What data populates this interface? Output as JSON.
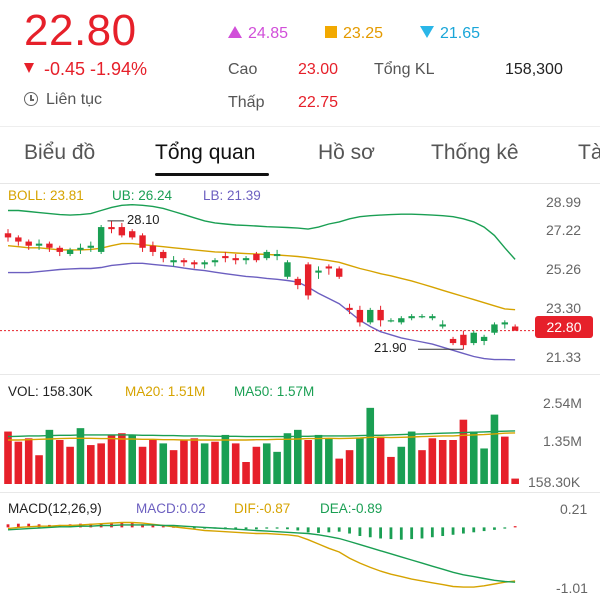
{
  "quote": {
    "price": "22.80",
    "change": "-0.45 -1.94%",
    "status": "Liên tục",
    "ceiling": "24.85",
    "reference": "23.25",
    "floor": "21.65",
    "high_label": "Cao",
    "high_value": "23.00",
    "low_label": "Thấp",
    "low_value": "22.75",
    "volume_label": "Tổng KL",
    "volume_value": "158,300",
    "colors": {
      "down": "#e6202a",
      "up": "#1a9f53",
      "ceiling": "#d14fd9",
      "reference": "#f2a900",
      "floor": "#2ab6e8"
    }
  },
  "tabs": [
    {
      "label": "Biểu đồ",
      "active": false
    },
    {
      "label": "Tổng quan",
      "active": true
    },
    {
      "label": "Hồ sơ",
      "active": false
    },
    {
      "label": "Thống kê",
      "active": false
    },
    {
      "label": "Tà",
      "active": false
    }
  ],
  "chart_data": [
    {
      "type": "candlestick",
      "legend": {
        "boll": "BOLL: 23.81",
        "ub": "UB: 26.24",
        "lb": "LB: 21.39"
      },
      "y_ticks": [
        "28.99",
        "27.22",
        "25.26",
        "23.30",
        "21.33"
      ],
      "ylim": [
        20.9,
        29.3
      ],
      "last_price": "22.80",
      "annotations": {
        "max": "28.10",
        "min": "21.90"
      },
      "candles": [
        [
          27.5,
          27.7,
          27.1,
          27.3
        ],
        [
          27.3,
          27.4,
          26.9,
          27.1
        ],
        [
          27.1,
          27.2,
          26.7,
          26.9
        ],
        [
          26.9,
          27.2,
          26.7,
          27.0
        ],
        [
          27.0,
          27.1,
          26.6,
          26.8
        ],
        [
          26.8,
          26.9,
          26.4,
          26.6
        ],
        [
          26.5,
          26.8,
          26.4,
          26.7
        ],
        [
          26.7,
          27.0,
          26.5,
          26.8
        ],
        [
          26.8,
          27.1,
          26.6,
          26.9
        ],
        [
          26.6,
          27.9,
          26.5,
          27.8
        ],
        [
          27.8,
          28.1,
          27.5,
          27.7
        ],
        [
          27.8,
          28.0,
          27.3,
          27.4
        ],
        [
          27.6,
          27.7,
          27.2,
          27.3
        ],
        [
          27.4,
          27.5,
          26.6,
          26.8
        ],
        [
          26.9,
          27.1,
          26.4,
          26.6
        ],
        [
          26.6,
          26.7,
          26.1,
          26.3
        ],
        [
          26.1,
          26.4,
          25.9,
          26.2
        ],
        [
          26.2,
          26.3,
          25.9,
          26.1
        ],
        [
          26.1,
          26.2,
          25.8,
          26.0
        ],
        [
          26.0,
          26.2,
          25.8,
          26.1
        ],
        [
          26.1,
          26.3,
          25.9,
          26.2
        ],
        [
          26.4,
          26.6,
          26.1,
          26.3
        ],
        [
          26.3,
          26.5,
          26.0,
          26.2
        ],
        [
          26.2,
          26.4,
          26.0,
          26.3
        ],
        [
          26.5,
          26.6,
          26.1,
          26.2
        ],
        [
          26.3,
          26.7,
          26.2,
          26.6
        ],
        [
          26.4,
          26.7,
          26.2,
          26.5
        ],
        [
          25.4,
          26.2,
          25.3,
          26.1
        ],
        [
          25.3,
          25.4,
          24.8,
          25.0
        ],
        [
          26.0,
          26.1,
          24.3,
          24.5
        ],
        [
          25.6,
          25.9,
          25.3,
          25.7
        ],
        [
          25.9,
          26.0,
          25.5,
          25.8
        ],
        [
          25.8,
          25.9,
          25.3,
          25.4
        ],
        [
          23.9,
          24.1,
          23.6,
          23.8
        ],
        [
          23.8,
          24.0,
          23.0,
          23.2
        ],
        [
          23.2,
          23.9,
          23.1,
          23.8
        ],
        [
          23.8,
          24.0,
          23.0,
          23.3
        ],
        [
          23.3,
          23.4,
          23.2,
          23.3
        ],
        [
          23.2,
          23.5,
          23.1,
          23.4
        ],
        [
          23.4,
          23.6,
          23.3,
          23.5
        ],
        [
          23.5,
          23.6,
          23.4,
          23.5
        ],
        [
          23.4,
          23.6,
          23.3,
          23.5
        ],
        [
          23.0,
          23.3,
          22.9,
          23.1
        ],
        [
          22.4,
          22.5,
          22.1,
          22.2
        ],
        [
          22.6,
          22.8,
          21.9,
          22.1
        ],
        [
          22.2,
          22.8,
          22.1,
          22.7
        ],
        [
          22.3,
          22.6,
          22.1,
          22.5
        ],
        [
          22.7,
          23.2,
          22.6,
          23.1
        ],
        [
          23.1,
          23.3,
          22.9,
          23.2
        ],
        [
          23.0,
          23.1,
          22.8,
          22.8
        ]
      ],
      "boll": [
        26.9,
        26.85,
        26.8,
        26.8,
        26.75,
        26.7,
        26.7,
        26.7,
        26.72,
        26.78,
        26.9,
        27.0,
        27.0,
        26.95,
        26.9,
        26.85,
        26.8,
        26.75,
        26.7,
        26.65,
        26.6,
        26.58,
        26.55,
        26.52,
        26.5,
        26.48,
        26.45,
        26.42,
        26.38,
        26.32,
        26.25,
        26.18,
        26.1,
        25.95,
        25.8,
        25.68,
        25.55,
        25.45,
        25.32,
        25.2,
        25.05,
        24.9,
        24.75,
        24.6,
        24.45,
        24.3,
        24.15,
        24.0,
        23.85,
        23.81
      ],
      "ub": [
        28.6,
        28.6,
        28.55,
        28.5,
        28.45,
        28.4,
        28.38,
        28.4,
        28.45,
        28.6,
        28.75,
        28.85,
        28.88,
        28.85,
        28.8,
        28.7,
        28.55,
        28.4,
        28.25,
        28.1,
        28.0,
        27.95,
        27.9,
        27.88,
        27.85,
        27.82,
        27.8,
        27.78,
        27.75,
        27.7,
        27.8,
        27.95,
        28.05,
        28.2,
        28.3,
        28.35,
        28.38,
        28.4,
        28.42,
        28.42,
        28.4,
        28.38,
        28.35,
        28.3,
        28.2,
        28.05,
        27.8,
        27.4,
        26.8,
        26.24
      ],
      "lb": [
        25.6,
        25.6,
        25.6,
        25.65,
        25.7,
        25.75,
        25.78,
        25.8,
        25.8,
        25.85,
        25.95,
        26.0,
        26.05,
        26.05,
        26.0,
        25.95,
        25.9,
        25.82,
        25.75,
        25.7,
        25.62,
        25.55,
        25.48,
        25.42,
        25.38,
        25.32,
        25.28,
        25.22,
        25.15,
        24.9,
        24.6,
        24.35,
        24.1,
        23.7,
        23.3,
        23.0,
        22.75,
        22.6,
        22.45,
        22.35,
        22.25,
        22.15,
        22.0,
        21.85,
        21.7,
        21.55,
        21.45,
        21.4,
        21.4,
        21.39
      ]
    },
    {
      "type": "bar",
      "legend": {
        "vol": "VOL: 158.30K",
        "ma20": "MA20: 1.51M",
        "ma50": "MA50: 1.57M"
      },
      "y_ticks": [
        "2.54M",
        "1.35M",
        "158.30K"
      ],
      "ylim": [
        0,
        2.6
      ],
      "values": [
        1.55,
        1.25,
        1.35,
        0.85,
        1.6,
        1.3,
        1.1,
        1.65,
        1.15,
        1.2,
        1.45,
        1.5,
        1.45,
        1.1,
        1.3,
        1.2,
        1.0,
        1.3,
        1.35,
        1.2,
        1.25,
        1.45,
        1.2,
        0.65,
        1.1,
        1.2,
        0.95,
        1.5,
        1.6,
        1.3,
        1.45,
        1.35,
        0.75,
        1.0,
        1.35,
        2.25,
        1.4,
        0.8,
        1.1,
        1.55,
        1.0,
        1.35,
        1.3,
        1.3,
        1.9,
        1.55,
        1.05,
        2.05,
        1.4,
        0.16
      ],
      "up": [
        false,
        false,
        false,
        false,
        true,
        false,
        false,
        true,
        false,
        false,
        false,
        false,
        true,
        false,
        false,
        true,
        false,
        false,
        false,
        true,
        false,
        true,
        false,
        false,
        false,
        true,
        true,
        true,
        true,
        false,
        true,
        true,
        false,
        false,
        true,
        true,
        false,
        false,
        true,
        true,
        false,
        false,
        false,
        false,
        false,
        true,
        true,
        true,
        false,
        false
      ],
      "ma20": [
        1.3,
        1.3,
        1.31,
        1.32,
        1.33,
        1.34,
        1.35,
        1.35,
        1.35,
        1.34,
        1.34,
        1.33,
        1.33,
        1.32,
        1.32,
        1.31,
        1.31,
        1.3,
        1.3,
        1.3,
        1.3,
        1.3,
        1.3,
        1.3,
        1.31,
        1.31,
        1.32,
        1.32,
        1.33,
        1.34,
        1.34,
        1.35,
        1.34,
        1.35,
        1.36,
        1.38,
        1.38,
        1.37,
        1.38,
        1.39,
        1.4,
        1.41,
        1.42,
        1.42,
        1.44,
        1.45,
        1.46,
        1.48,
        1.5,
        1.51
      ],
      "ma50": [
        1.4,
        1.41,
        1.42,
        1.42,
        1.43,
        1.44,
        1.44,
        1.45,
        1.45,
        1.45,
        1.45,
        1.45,
        1.45,
        1.44,
        1.44,
        1.43,
        1.43,
        1.42,
        1.42,
        1.42,
        1.41,
        1.41,
        1.41,
        1.4,
        1.4,
        1.4,
        1.4,
        1.4,
        1.41,
        1.41,
        1.42,
        1.42,
        1.42,
        1.42,
        1.43,
        1.44,
        1.44,
        1.45,
        1.46,
        1.47,
        1.48,
        1.49,
        1.5,
        1.51,
        1.52,
        1.53,
        1.54,
        1.55,
        1.56,
        1.57
      ]
    },
    {
      "type": "macd",
      "legend": {
        "macd": "MACD(12,26,9)",
        "macd_value": "MACD:0.02",
        "dif": "DIF:-0.87",
        "dea": "DEA:-0.89"
      },
      "y_ticks": [
        "0.21",
        "-1.01"
      ],
      "ylim": [
        -1.05,
        0.25
      ],
      "hist": [
        0.05,
        0.06,
        0.06,
        0.05,
        0.04,
        0.04,
        0.05,
        0.06,
        0.06,
        0.07,
        0.08,
        0.08,
        0.07,
        0.05,
        0.03,
        0.02,
        0.01,
        0.0,
        -0.01,
        -0.02,
        -0.02,
        -0.03,
        -0.03,
        -0.03,
        -0.03,
        -0.02,
        -0.02,
        -0.03,
        -0.05,
        -0.08,
        -0.09,
        -0.08,
        -0.07,
        -0.1,
        -0.14,
        -0.16,
        -0.18,
        -0.19,
        -0.2,
        -0.19,
        -0.18,
        -0.16,
        -0.14,
        -0.12,
        -0.1,
        -0.08,
        -0.06,
        -0.04,
        -0.02,
        0.02
      ],
      "dif": [
        -0.02,
        0.0,
        0.01,
        0.02,
        0.02,
        0.03,
        0.03,
        0.04,
        0.05,
        0.06,
        0.07,
        0.08,
        0.08,
        0.07,
        0.05,
        0.03,
        0.01,
        -0.01,
        -0.03,
        -0.05,
        -0.06,
        -0.07,
        -0.08,
        -0.09,
        -0.1,
        -0.1,
        -0.11,
        -0.12,
        -0.14,
        -0.2,
        -0.27,
        -0.34,
        -0.4,
        -0.5,
        -0.58,
        -0.65,
        -0.71,
        -0.76,
        -0.8,
        -0.84,
        -0.87,
        -0.9,
        -0.93,
        -0.96,
        -0.97,
        -0.97,
        -0.95,
        -0.92,
        -0.89,
        -0.87
      ],
      "dea": [
        -0.04,
        -0.03,
        -0.02,
        -0.01,
        0.0,
        0.01,
        0.01,
        0.02,
        0.02,
        0.03,
        0.03,
        0.04,
        0.04,
        0.04,
        0.04,
        0.03,
        0.03,
        0.02,
        0.01,
        0.0,
        -0.01,
        -0.02,
        -0.03,
        -0.04,
        -0.05,
        -0.06,
        -0.07,
        -0.08,
        -0.09,
        -0.1,
        -0.12,
        -0.15,
        -0.18,
        -0.23,
        -0.28,
        -0.33,
        -0.38,
        -0.43,
        -0.48,
        -0.53,
        -0.58,
        -0.63,
        -0.68,
        -0.73,
        -0.77,
        -0.8,
        -0.83,
        -0.86,
        -0.88,
        -0.89
      ]
    }
  ]
}
